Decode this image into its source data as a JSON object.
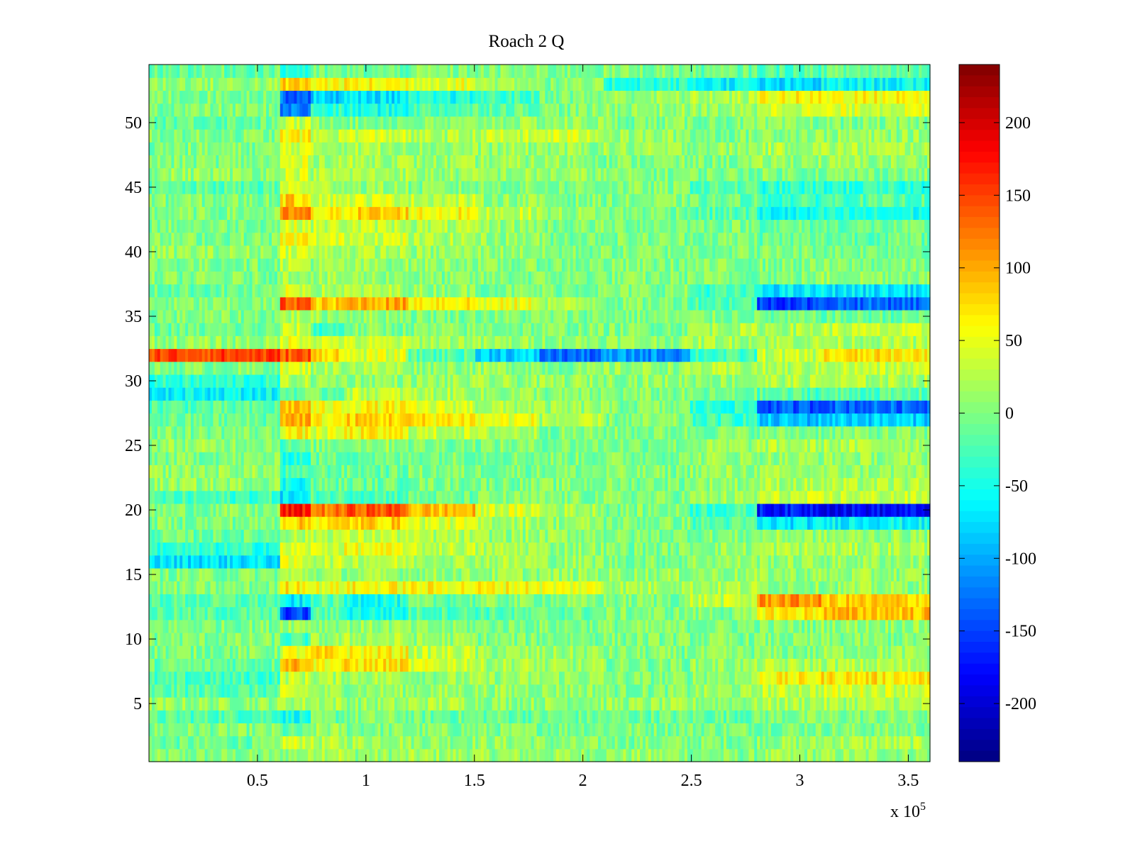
{
  "chart_data": {
    "type": "heatmap",
    "title": "Roach 2 Q",
    "xlabel": "",
    "ylabel": "",
    "x_exponent_label": "x 10",
    "x_exponent_power": "5",
    "xlim": [
      0,
      3.6
    ],
    "ylim": [
      0.5,
      54.5
    ],
    "x_ticks": [
      0.5,
      1,
      1.5,
      2,
      2.5,
      3,
      3.5
    ],
    "x_tick_labels": [
      "0.5",
      "1",
      "1.5",
      "2",
      "2.5",
      "3",
      "3.5"
    ],
    "y_ticks": [
      5,
      10,
      15,
      20,
      25,
      30,
      35,
      40,
      45,
      50
    ],
    "y_tick_labels": [
      "5",
      "10",
      "15",
      "20",
      "25",
      "30",
      "35",
      "40",
      "45",
      "50"
    ],
    "colorbar": {
      "colormap": "jet",
      "clim": [
        -240,
        240
      ],
      "ticks": [
        -200,
        -150,
        -100,
        -50,
        0,
        50,
        100,
        150,
        200
      ],
      "tick_labels": [
        "-200",
        "-150",
        "-100",
        "-50",
        "0",
        "50",
        "100",
        "150",
        "200"
      ]
    },
    "grid": false,
    "rows": 54,
    "x_segment_breaks": [
      0,
      0.6,
      0.75,
      0.9,
      1.2,
      1.5,
      1.8,
      2.1,
      2.5,
      2.8,
      3.1,
      3.6
    ],
    "segment_means": {
      "1": [
        0,
        10,
        30,
        10,
        15,
        10,
        10,
        10,
        0,
        10,
        10
      ],
      "2": [
        -10,
        40,
        20,
        20,
        10,
        10,
        0,
        0,
        0,
        10,
        20
      ],
      "3": [
        0,
        -20,
        10,
        0,
        0,
        0,
        0,
        0,
        0,
        0,
        0
      ],
      "4": [
        -20,
        -50,
        -10,
        0,
        -10,
        -10,
        -10,
        -10,
        -10,
        0,
        0
      ],
      "5": [
        10,
        20,
        20,
        10,
        20,
        10,
        10,
        10,
        10,
        20,
        20
      ],
      "6": [
        -20,
        30,
        10,
        10,
        10,
        10,
        10,
        0,
        10,
        30,
        40
      ],
      "7": [
        -30,
        30,
        20,
        20,
        10,
        10,
        10,
        0,
        10,
        60,
        70
      ],
      "8": [
        -10,
        100,
        60,
        70,
        40,
        20,
        10,
        0,
        10,
        20,
        20
      ],
      "9": [
        0,
        50,
        70,
        60,
        30,
        10,
        10,
        0,
        0,
        0,
        10
      ],
      "10": [
        0,
        -30,
        10,
        20,
        10,
        0,
        0,
        0,
        0,
        0,
        0
      ],
      "11": [
        0,
        20,
        10,
        10,
        0,
        0,
        0,
        0,
        0,
        0,
        10
      ],
      "12": [
        -20,
        -150,
        -20,
        -50,
        -20,
        -20,
        -10,
        0,
        0,
        70,
        90
      ],
      "13": [
        -20,
        -70,
        -20,
        -50,
        -10,
        0,
        0,
        0,
        30,
        110,
        80
      ],
      "14": [
        0,
        70,
        50,
        60,
        60,
        60,
        50,
        20,
        20,
        10,
        10
      ],
      "15": [
        0,
        20,
        10,
        10,
        10,
        10,
        10,
        10,
        10,
        10,
        10
      ],
      "16": [
        -70,
        40,
        30,
        30,
        20,
        20,
        10,
        0,
        10,
        10,
        10
      ],
      "17": [
        -40,
        40,
        40,
        50,
        30,
        20,
        10,
        0,
        10,
        20,
        20
      ],
      "18": [
        -10,
        20,
        30,
        30,
        20,
        10,
        10,
        0,
        0,
        10,
        10
      ],
      "19": [
        0,
        80,
        70,
        80,
        40,
        20,
        10,
        0,
        -20,
        -70,
        -60
      ],
      "20": [
        0,
        170,
        120,
        140,
        90,
        40,
        20,
        0,
        -30,
        -170,
        -180
      ],
      "21": [
        -30,
        -70,
        -20,
        -20,
        -10,
        0,
        0,
        0,
        10,
        30,
        30
      ],
      "22": [
        10,
        -50,
        -10,
        -10,
        0,
        0,
        0,
        0,
        10,
        20,
        20
      ],
      "23": [
        10,
        -30,
        -10,
        -10,
        0,
        0,
        0,
        0,
        10,
        10,
        10
      ],
      "24": [
        0,
        -40,
        -10,
        -10,
        0,
        0,
        0,
        0,
        10,
        10,
        10
      ],
      "25": [
        10,
        -20,
        0,
        10,
        0,
        0,
        0,
        0,
        10,
        20,
        20
      ],
      "26": [
        0,
        60,
        40,
        60,
        30,
        20,
        0,
        0,
        0,
        0,
        0
      ],
      "27": [
        -10,
        100,
        60,
        80,
        70,
        50,
        20,
        0,
        -30,
        -90,
        -80
      ],
      "28": [
        -20,
        90,
        50,
        60,
        40,
        20,
        10,
        0,
        -40,
        -140,
        -130
      ],
      "29": [
        -60,
        -10,
        -10,
        30,
        20,
        10,
        0,
        0,
        -10,
        -20,
        -20
      ],
      "30": [
        -40,
        20,
        10,
        10,
        10,
        10,
        10,
        10,
        10,
        20,
        20
      ],
      "31": [
        0,
        40,
        20,
        20,
        10,
        10,
        0,
        10,
        20,
        20,
        30
      ],
      "32": [
        150,
        140,
        80,
        40,
        -20,
        -80,
        -130,
        -110,
        -30,
        30,
        70
      ],
      "33": [
        10,
        50,
        40,
        30,
        20,
        10,
        10,
        10,
        20,
        20,
        20
      ],
      "34": [
        -10,
        30,
        -30,
        0,
        0,
        0,
        0,
        0,
        20,
        20,
        30
      ],
      "35": [
        0,
        20,
        10,
        10,
        0,
        0,
        0,
        0,
        0,
        -10,
        -10
      ],
      "36": [
        0,
        140,
        80,
        100,
        70,
        50,
        20,
        0,
        -20,
        -150,
        -130
      ],
      "37": [
        -10,
        40,
        20,
        20,
        10,
        0,
        0,
        0,
        -30,
        -70,
        -70
      ],
      "38": [
        0,
        20,
        10,
        10,
        0,
        0,
        0,
        0,
        0,
        0,
        10
      ],
      "39": [
        0,
        30,
        10,
        10,
        10,
        0,
        0,
        0,
        0,
        0,
        0
      ],
      "40": [
        10,
        40,
        20,
        20,
        10,
        10,
        0,
        0,
        0,
        0,
        0
      ],
      "41": [
        0,
        60,
        40,
        40,
        20,
        10,
        0,
        0,
        0,
        -10,
        -10
      ],
      "42": [
        0,
        40,
        30,
        30,
        20,
        10,
        0,
        0,
        0,
        -10,
        -10
      ],
      "43": [
        0,
        110,
        60,
        80,
        60,
        30,
        10,
        0,
        -20,
        -60,
        -50
      ],
      "44": [
        0,
        80,
        40,
        40,
        30,
        10,
        0,
        0,
        -10,
        -30,
        -20
      ],
      "45": [
        -20,
        40,
        20,
        10,
        0,
        0,
        0,
        0,
        -20,
        -40,
        -40
      ],
      "46": [
        10,
        40,
        20,
        20,
        10,
        10,
        10,
        0,
        0,
        0,
        0
      ],
      "47": [
        0,
        40,
        20,
        20,
        10,
        10,
        10,
        0,
        0,
        10,
        10
      ],
      "48": [
        0,
        40,
        20,
        20,
        10,
        10,
        10,
        10,
        10,
        20,
        20
      ],
      "49": [
        0,
        60,
        30,
        40,
        20,
        30,
        40,
        10,
        0,
        10,
        10
      ],
      "50": [
        -10,
        30,
        10,
        0,
        0,
        10,
        10,
        0,
        0,
        0,
        0
      ],
      "51": [
        0,
        -120,
        -40,
        -50,
        -20,
        -10,
        0,
        10,
        10,
        40,
        40
      ],
      "52": [
        0,
        -130,
        -80,
        -70,
        -50,
        -30,
        0,
        10,
        20,
        60,
        60
      ],
      "53": [
        10,
        80,
        60,
        60,
        50,
        20,
        0,
        -40,
        -60,
        -80,
        -60
      ],
      "54": [
        -10,
        -40,
        -10,
        -10,
        0,
        0,
        0,
        0,
        -10,
        -20,
        -10
      ]
    }
  }
}
